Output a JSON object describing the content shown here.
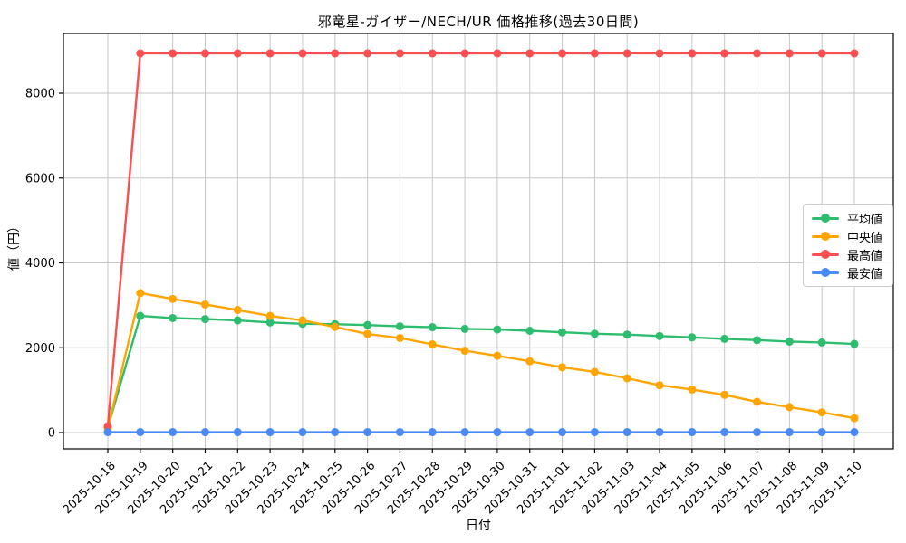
{
  "chart_data": {
    "type": "line",
    "title": "邪竜星-ガイザー/NECH/UR 価格推移(過去30日間)",
    "xlabel": "日付",
    "ylabel": "値（円）",
    "grid": true,
    "legend_position": "center right",
    "yticks": [
      0,
      2000,
      4000,
      6000,
      8000
    ],
    "ylim": [
      -360,
      9410
    ],
    "x": [
      "2025-10-18",
      "2025-10-19",
      "2025-10-20",
      "2025-10-21",
      "2025-10-22",
      "2025-10-23",
      "2025-10-24",
      "2025-10-25",
      "2025-10-26",
      "2025-10-27",
      "2025-10-28",
      "2025-10-29",
      "2025-10-30",
      "2025-10-31",
      "2025-11-01",
      "2025-11-02",
      "2025-11-03",
      "2025-11-04",
      "2025-11-05",
      "2025-11-06",
      "2025-11-07",
      "2025-11-08",
      "2025-11-09",
      "2025-11-10"
    ],
    "series": [
      {
        "name": "平均値",
        "slug": "average",
        "color": "#2ebd6e",
        "values": [
          120,
          2750,
          2700,
          2675,
          2645,
          2595,
          2565,
          2555,
          2535,
          2505,
          2485,
          2445,
          2430,
          2400,
          2365,
          2330,
          2310,
          2275,
          2245,
          2210,
          2180,
          2145,
          2125,
          2090
        ]
      },
      {
        "name": "中央値",
        "slug": "median",
        "color": "#ffa502",
        "values": [
          100,
          3290,
          3150,
          3020,
          2890,
          2750,
          2645,
          2490,
          2325,
          2230,
          2080,
          1930,
          1810,
          1680,
          1540,
          1430,
          1280,
          1115,
          1015,
          890,
          725,
          600,
          475,
          340
        ]
      },
      {
        "name": "最高値",
        "slug": "highest",
        "color": "#f85050",
        "values": [
          150,
          8940,
          8940,
          8940,
          8940,
          8940,
          8940,
          8940,
          8940,
          8940,
          8940,
          8940,
          8940,
          8940,
          8940,
          8940,
          8940,
          8940,
          8940,
          8940,
          8940,
          8940,
          8940,
          8940
        ]
      },
      {
        "name": "最安値",
        "slug": "lowest",
        "color": "#4a8af4",
        "values": [
          10,
          10,
          10,
          10,
          10,
          10,
          10,
          10,
          10,
          10,
          10,
          10,
          10,
          10,
          10,
          10,
          10,
          10,
          10,
          10,
          10,
          10,
          10,
          10
        ]
      }
    ]
  }
}
